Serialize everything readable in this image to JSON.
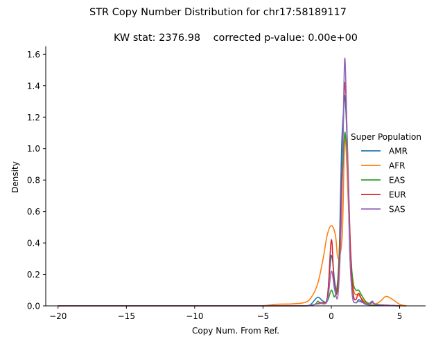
{
  "colors": {
    "AMR": "#1f77b4",
    "AFR": "#ff7f0e",
    "EAS": "#2ca02c",
    "EUR": "#d62728",
    "SAS": "#9467bd",
    "axis": "#000000",
    "background": "#ffffff"
  },
  "chart_data": {
    "type": "line",
    "title": "STR Copy Number Distribution for chr17:58189117",
    "subtitle": "KW stat: 2376.98    corrected p-value: 0.00e+00",
    "xlabel": "Copy Num. From Ref.",
    "ylabel": "Density",
    "xlim": [
      -20.9,
      6.9
    ],
    "ylim": [
      0.0,
      1.65
    ],
    "xticks": [
      -20,
      -15,
      -10,
      -5,
      0,
      5
    ],
    "xtick_labels": [
      "−20",
      "−15",
      "−10",
      "−5",
      "0",
      "5"
    ],
    "yticks": [
      0.0,
      0.2,
      0.4,
      0.6,
      0.8,
      1.0,
      1.2,
      1.4,
      1.6
    ],
    "ytick_labels": [
      "0.0",
      "0.2",
      "0.4",
      "0.6",
      "0.8",
      "1.0",
      "1.2",
      "1.4",
      "1.6"
    ],
    "grid": false,
    "legend": {
      "title": "Super Population",
      "placement": "center-right",
      "entries": [
        "AMR",
        "AFR",
        "EAS",
        "EUR",
        "SAS"
      ]
    },
    "series": [
      {
        "name": "AMR",
        "x": [
          -20,
          -5,
          -2,
          -1.5,
          -1,
          -0.6,
          -0.3,
          0,
          0.25,
          0.45,
          0.6,
          0.75,
          0.9,
          1,
          1.15,
          1.35,
          1.55,
          1.8,
          2,
          2.2,
          2.5,
          3,
          4,
          5.5
        ],
        "y": [
          0,
          0,
          0,
          0.01,
          0.055,
          0.03,
          0.05,
          0.32,
          0.15,
          0.1,
          0.4,
          1.0,
          1.25,
          1.33,
          1.05,
          0.35,
          0.06,
          0.02,
          0.04,
          0.03,
          0.01,
          0.005,
          0.002,
          0
        ]
      },
      {
        "name": "AFR",
        "x": [
          -20,
          -6,
          -5,
          -4,
          -3,
          -2,
          -1.5,
          -1,
          -0.6,
          -0.3,
          0,
          0.3,
          0.5,
          0.8,
          1,
          1.3,
          1.6,
          2,
          2.4,
          2.8,
          3.2,
          3.6,
          4,
          4.5,
          5,
          5.5
        ],
        "y": [
          0,
          0,
          0.001,
          0.01,
          0.012,
          0.02,
          0.05,
          0.14,
          0.3,
          0.45,
          0.51,
          0.45,
          0.3,
          0.45,
          1.07,
          0.55,
          0.12,
          0.07,
          0.03,
          0.01,
          0.01,
          0.03,
          0.06,
          0.04,
          0.01,
          0
        ]
      },
      {
        "name": "EAS",
        "x": [
          -20,
          -5,
          -2,
          -1.2,
          -1,
          -0.8,
          -0.3,
          0,
          0.25,
          0.5,
          0.75,
          0.95,
          1.05,
          1.2,
          1.4,
          1.6,
          1.8,
          2,
          2.2,
          2.5,
          2.8,
          3,
          3.3,
          3.8,
          5
        ],
        "y": [
          0,
          0,
          0,
          0.01,
          0.03,
          0.02,
          0.03,
          0.1,
          0.06,
          0.2,
          0.7,
          1.07,
          1.07,
          0.9,
          0.35,
          0.15,
          0.1,
          0.1,
          0.07,
          0.03,
          0.015,
          0.02,
          0.01,
          0.005,
          0
        ]
      },
      {
        "name": "EUR",
        "x": [
          -20,
          -5,
          -2,
          -1.2,
          -0.8,
          -0.3,
          0,
          0.2,
          0.4,
          0.6,
          0.8,
          1,
          1.2,
          1.4,
          1.6,
          1.8,
          2,
          2.3,
          2.7,
          3,
          3.3,
          5
        ],
        "y": [
          0,
          0,
          0,
          0.01,
          0.02,
          0.04,
          0.42,
          0.15,
          0.08,
          0.3,
          0.9,
          1.42,
          0.95,
          0.35,
          0.08,
          0.04,
          0.08,
          0.03,
          0.01,
          0.025,
          0.01,
          0
        ]
      },
      {
        "name": "SAS",
        "x": [
          -20,
          -5,
          -2,
          -1.2,
          -0.8,
          -0.3,
          0,
          0.25,
          0.5,
          0.75,
          0.9,
          1,
          1.15,
          1.35,
          1.55,
          1.8,
          2,
          2.3,
          2.7,
          3,
          3.3,
          5
        ],
        "y": [
          0,
          0,
          0,
          0.01,
          0.015,
          0.03,
          0.22,
          0.1,
          0.08,
          0.6,
          1.3,
          1.57,
          1.1,
          0.35,
          0.06,
          0.02,
          0.03,
          0.02,
          0.01,
          0.03,
          0.01,
          0
        ]
      }
    ]
  }
}
